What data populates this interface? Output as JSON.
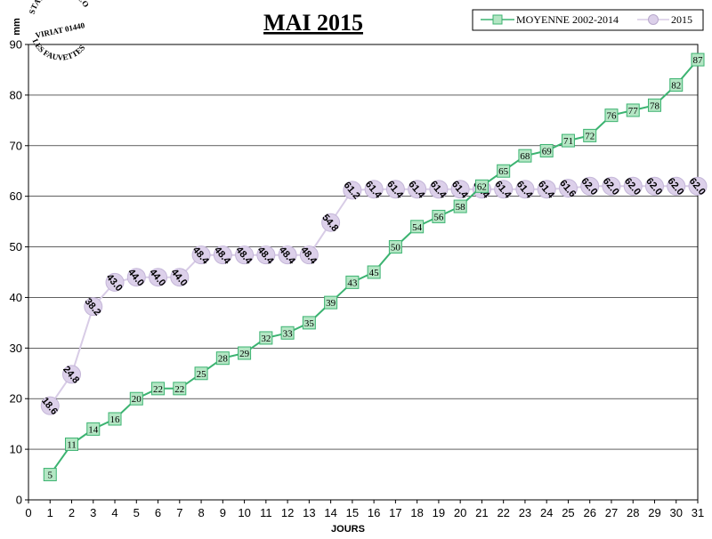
{
  "stamp": {
    "lines": [
      "STATION METEO",
      "VIRIAT 01440",
      "LES FAUVETTES"
    ]
  },
  "chart_data": {
    "type": "line",
    "title": "MAI 2015",
    "xlabel": "JOURS",
    "ylabel": "mm",
    "xlim": [
      0,
      31
    ],
    "ylim": [
      0,
      90
    ],
    "x_ticks": [
      0,
      1,
      2,
      3,
      4,
      5,
      6,
      7,
      8,
      9,
      10,
      11,
      12,
      13,
      14,
      15,
      16,
      17,
      18,
      19,
      20,
      21,
      22,
      23,
      24,
      25,
      26,
      27,
      28,
      29,
      30,
      31
    ],
    "y_ticks": [
      0,
      10,
      20,
      30,
      40,
      50,
      60,
      70,
      80,
      90
    ],
    "grid": "horizontal",
    "legend_position": "top-right",
    "series": [
      {
        "name": "MOYENNE 2002-2014",
        "marker": "square",
        "color": "#3cb371",
        "marker_fill": "#b4e6c4",
        "x": [
          1,
          2,
          3,
          4,
          5,
          6,
          7,
          8,
          9,
          10,
          11,
          12,
          13,
          14,
          15,
          16,
          17,
          18,
          19,
          20,
          21,
          22,
          23,
          24,
          25,
          26,
          27,
          28,
          29,
          30,
          31
        ],
        "values": [
          5,
          11,
          14,
          16,
          20,
          22,
          22,
          25,
          28,
          29,
          32,
          33,
          35,
          39,
          43,
          45,
          50,
          54,
          56,
          58,
          62,
          65,
          68,
          69,
          71,
          72,
          76,
          77,
          78,
          82,
          87
        ],
        "labels": [
          "5",
          "11",
          "14",
          "16",
          "20",
          "22",
          "22",
          "25",
          "28",
          "29",
          "32",
          "33",
          "35",
          "39",
          "43",
          "45",
          "50",
          "54",
          "56",
          "58",
          "62",
          "65",
          "68",
          "69",
          "71",
          "72",
          "76",
          "77",
          "78",
          "82",
          "87"
        ]
      },
      {
        "name": "2015",
        "marker": "circle",
        "color": "#d8cce6",
        "marker_fill": "#dcd0ea",
        "x": [
          1,
          2,
          3,
          4,
          5,
          6,
          7,
          8,
          9,
          10,
          11,
          12,
          13,
          14,
          15,
          16,
          17,
          18,
          19,
          20,
          21,
          22,
          23,
          24,
          25,
          26,
          27,
          28,
          29,
          30,
          31
        ],
        "values": [
          18.6,
          24.8,
          38.2,
          43.0,
          44.0,
          44.0,
          44.0,
          48.4,
          48.4,
          48.4,
          48.4,
          48.4,
          48.4,
          54.8,
          61.2,
          61.4,
          61.4,
          61.4,
          61.4,
          61.4,
          61.4,
          61.4,
          61.4,
          61.4,
          61.6,
          62.0,
          62.0,
          62.0,
          62.0,
          62.0,
          62.0
        ],
        "labels": [
          "18.6",
          "24.8",
          "38.2",
          "43.0",
          "44.0",
          "44.0",
          "44.0",
          "48.4",
          "48.4",
          "48.4",
          "48.4",
          "48.4",
          "48.4",
          "54.8",
          "61.2",
          "61.4",
          "61.4",
          "61.4",
          "61.4",
          "61.4",
          "61.4",
          "61.4",
          "61.4",
          "61.4",
          "61.6",
          "62.0",
          "62.0",
          "62.0",
          "62.0",
          "62.0",
          "62.0"
        ]
      }
    ]
  }
}
